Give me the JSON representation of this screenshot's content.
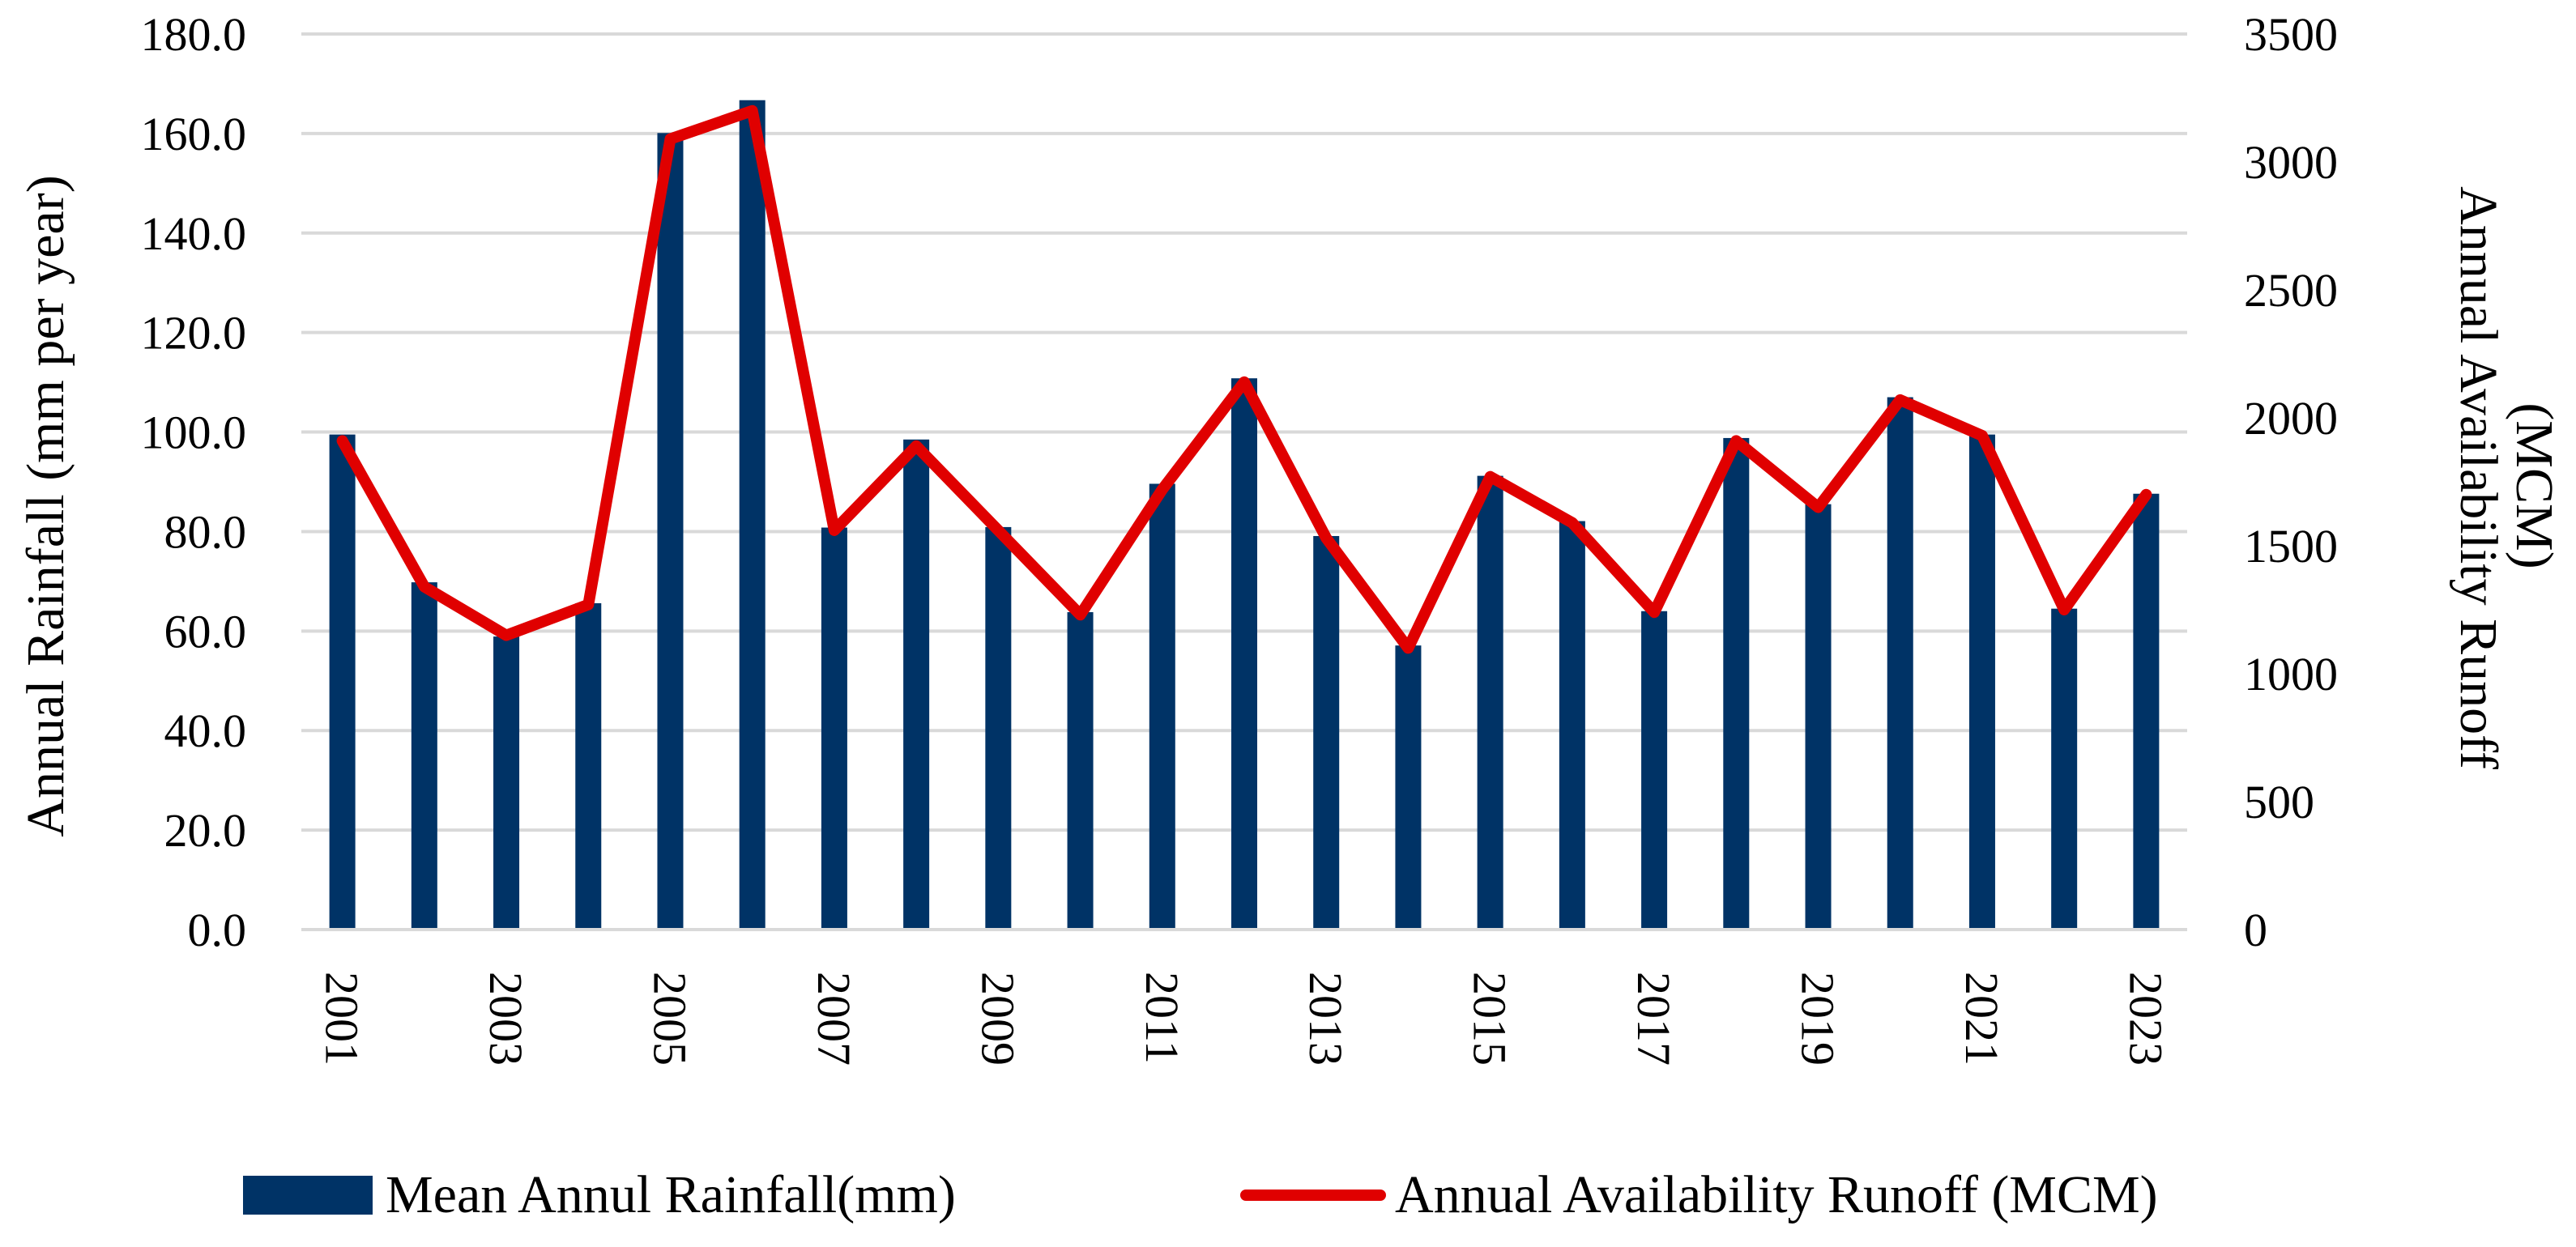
{
  "chart_data": {
    "type": "bar",
    "title": "",
    "x": [
      2001,
      2002,
      2003,
      2004,
      2005,
      2006,
      2007,
      2008,
      2009,
      2010,
      2011,
      2012,
      2013,
      2014,
      2015,
      2016,
      2017,
      2018,
      2019,
      2020,
      2021,
      2022,
      2023
    ],
    "x_tick_labels": [
      "2001",
      "2003",
      "2005",
      "2007",
      "2009",
      "2011",
      "2013",
      "2015",
      "2017",
      "2019",
      "2021",
      "2023"
    ],
    "y_left": {
      "label": "Annual Rainfall (mm per year)",
      "ylim": [
        0,
        180
      ],
      "ticks": [
        "0.0",
        "20.0",
        "40.0",
        "60.0",
        "80.0",
        "100.0",
        "120.0",
        "140.0",
        "160.0",
        "180.0"
      ]
    },
    "y_right": {
      "label_line1": "Annual Availability Runoff",
      "label_line2": "(MCM)",
      "ylim": [
        0,
        3500
      ],
      "ticks": [
        "0",
        "500",
        "1000",
        "1500",
        "2000",
        "2500",
        "3000",
        "3500"
      ]
    },
    "series": [
      {
        "name": "Mean Annul Rainfall(mm)",
        "type": "bar",
        "axis": "left",
        "color": "#003366",
        "values": [
          99.5,
          69.8,
          58.9,
          65.6,
          160.1,
          166.7,
          80.8,
          98.5,
          80.9,
          63.8,
          89.6,
          110.8,
          79.1,
          57.1,
          91.2,
          82.1,
          64.0,
          98.8,
          85.5,
          107.0,
          99.5,
          64.5,
          87.6
        ]
      },
      {
        "name": "Annual Availability Runoff (MCM)",
        "type": "line",
        "axis": "right",
        "color": "#e00000",
        "values": [
          1910,
          1340,
          1150,
          1270,
          3090,
          3200,
          1560,
          1890,
          1560,
          1230,
          1720,
          2140,
          1530,
          1100,
          1770,
          1590,
          1240,
          1910,
          1650,
          2070,
          1930,
          1250,
          1700
        ]
      }
    ],
    "legend": {
      "placement": "bottom",
      "items": [
        "Mean Annul Rainfall(mm)",
        "Annual Availability Runoff (MCM)"
      ]
    }
  }
}
